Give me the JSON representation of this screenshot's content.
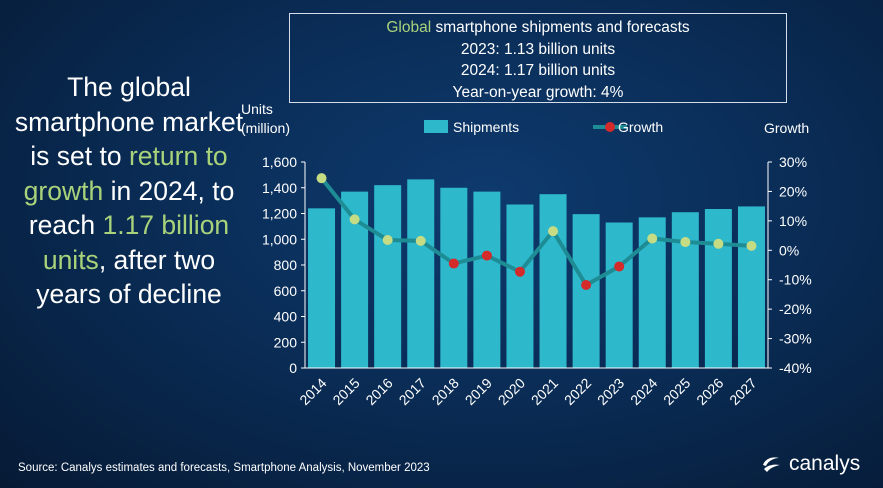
{
  "headline": {
    "part1": "The global smartphone market is set to ",
    "highlight1": "return to growth",
    "part2": " in 2024, to reach ",
    "highlight2": "1.17 billion units",
    "part3": ", after two years of decline"
  },
  "infobox": {
    "title_highlight": "Global",
    "title_rest": " smartphone shipments and forecasts",
    "line1": "2023: 1.13 billion units",
    "line2": "2024: 1.17 billion units",
    "line3": "Year-on-year growth: 4%"
  },
  "source": "Source: Canalys estimates and forecasts, Smartphone Analysis, November 2023",
  "brand": "canalys",
  "colors": {
    "bar": "#2eb8cc",
    "line": "#1e8c94",
    "marker_negative": "#d42a2a",
    "marker_positive": "#c6dc84",
    "highlight_text": "#a9d37a"
  },
  "chart_data": {
    "type": "bar",
    "categories": [
      "2014",
      "2015",
      "2016",
      "2017",
      "2018",
      "2019",
      "2020",
      "2021",
      "2022",
      "2023",
      "2024",
      "2025",
      "2026",
      "2027"
    ],
    "series": [
      {
        "name": "Shipments",
        "type": "bar",
        "axis": "left",
        "values": [
          1240,
          1370,
          1420,
          1465,
          1400,
          1370,
          1270,
          1350,
          1195,
          1130,
          1170,
          1210,
          1235,
          1255
        ]
      },
      {
        "name": "Growth",
        "type": "line",
        "axis": "right",
        "values": [
          24.5,
          10.5,
          3.5,
          3.2,
          -4.5,
          -1.8,
          -7.3,
          6.5,
          -11.8,
          -5.5,
          4,
          2.8,
          2.2,
          1.5
        ]
      }
    ],
    "ylabel": "Units\n(million)",
    "ylabel_line1": "Units",
    "ylabel_line2": "(million)",
    "y2label": "Growth",
    "ylim": [
      0,
      1600
    ],
    "y2lim": [
      -40,
      30
    ],
    "yticks": [
      "0",
      "200",
      "400",
      "600",
      "800",
      "1,000",
      "1,200",
      "1,400",
      "1,600"
    ],
    "y2ticks": [
      "-40%",
      "-30%",
      "-20%",
      "-10%",
      "0%",
      "10%",
      "20%",
      "30%"
    ],
    "legend_position": "top-center",
    "grid": false
  }
}
